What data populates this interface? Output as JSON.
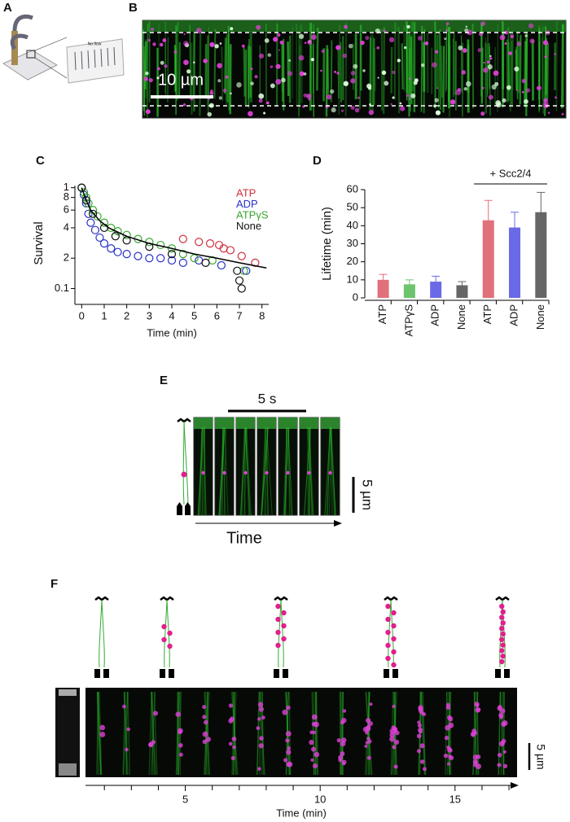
{
  "panel_labels": {
    "a": "A",
    "b": "B",
    "c": "C",
    "d": "D",
    "e": "E",
    "f": "F"
  },
  "panel_a": {
    "chip_text": "No flow"
  },
  "panel_b": {
    "scale_bar": "10 µm"
  },
  "chart_data": [
    {
      "type": "scatter",
      "y_label": "Survival",
      "x_label": "Time (min)",
      "yscale": "log",
      "xlim": [
        -0.3,
        8.3
      ],
      "ylim": [
        0.075,
        1.05
      ],
      "xticks": [
        0,
        1,
        2,
        3,
        4,
        5,
        6,
        7,
        8
      ],
      "yticks": [
        0.1,
        {
          "value": 0.2,
          "label": "2"
        },
        {
          "value": 0.4,
          "label": "4"
        },
        {
          "value": 0.6,
          "label": "6"
        },
        {
          "value": 0.8,
          "label": "8"
        },
        1
      ],
      "legend": "upper right",
      "series": [
        {
          "name": "ATP",
          "color": "#d0303c",
          "x": [
            4.5,
            5.2,
            5.7,
            6.1,
            6.3,
            6.6,
            7.1,
            7.7
          ],
          "values": [
            0.31,
            0.29,
            0.28,
            0.27,
            0.25,
            0.24,
            0.21,
            0.18
          ]
        },
        {
          "name": "ADP",
          "color": "#2830c8",
          "x": [
            0,
            0.1,
            0.2,
            0.3,
            0.4,
            0.6,
            0.8,
            1,
            1.3,
            1.6,
            2,
            2.5,
            3,
            3.5,
            4,
            4.5,
            5.2,
            6.2,
            7.3
          ],
          "values": [
            1,
            0.85,
            0.7,
            0.55,
            0.45,
            0.38,
            0.32,
            0.28,
            0.25,
            0.23,
            0.22,
            0.21,
            0.2,
            0.2,
            0.19,
            0.18,
            0.19,
            0.17,
            0.15
          ]
        },
        {
          "name": "ATPγS",
          "color": "#3aa630",
          "x": [
            0,
            0.1,
            0.2,
            0.3,
            0.5,
            0.7,
            1,
            1.3,
            1.6,
            2,
            2.5,
            3,
            3.5,
            4,
            4.5,
            5,
            5.8,
            7.2
          ],
          "values": [
            1,
            0.9,
            0.8,
            0.7,
            0.6,
            0.52,
            0.45,
            0.4,
            0.37,
            0.34,
            0.31,
            0.29,
            0.27,
            0.25,
            0.22,
            0.2,
            0.19,
            0.15
          ]
        },
        {
          "name": "None",
          "color": "#111111",
          "x": [
            0,
            0.2,
            0.5,
            1,
            1.5,
            2,
            3,
            4,
            5.5,
            6.9,
            7,
            7.1
          ],
          "values": [
            1,
            0.75,
            0.55,
            0.4,
            0.33,
            0.3,
            0.26,
            0.22,
            0.18,
            0.15,
            0.12,
            0.1
          ]
        }
      ],
      "fit": {
        "color": "#000000",
        "x": [
          0,
          0.2,
          0.4,
          0.8,
          1.2,
          2,
          3,
          4,
          5,
          6,
          7,
          8.2
        ],
        "values": [
          1,
          0.75,
          0.6,
          0.47,
          0.4,
          0.33,
          0.28,
          0.25,
          0.22,
          0.2,
          0.18,
          0.16
        ]
      }
    },
    {
      "type": "bar",
      "y_label": "Lifetime (min)",
      "annotation": "+ Scc2/4",
      "categories": [
        "ATP",
        "ATPγS",
        "ADP",
        "None",
        "ATP",
        "ADP",
        "None"
      ],
      "values": [
        10,
        7.5,
        9,
        7,
        43,
        39,
        47.5
      ],
      "errors": [
        3,
        2.5,
        3,
        2,
        11,
        8.5,
        11
      ],
      "colors": [
        "#e0707a",
        "#6cc46c",
        "#6a6ae6",
        "#666666",
        "#e0707a",
        "#6a6ae6",
        "#666666"
      ],
      "ylim": [
        0,
        60
      ],
      "yticks": [
        0,
        10,
        20,
        30,
        40,
        50,
        60
      ]
    }
  ],
  "panel_e": {
    "time_bar": "5 s",
    "scale_bar": "5 µm",
    "axis_label": "Time"
  },
  "panel_f": {
    "scale_bar": "5 µm",
    "x_label": "Time (min)",
    "xlim": [
      1.3,
      17.3
    ],
    "xticks": [
      5,
      10,
      15
    ],
    "minor_xticks": [
      2,
      3,
      4,
      6,
      7,
      8,
      9,
      11,
      12,
      13,
      14,
      16,
      17
    ]
  }
}
